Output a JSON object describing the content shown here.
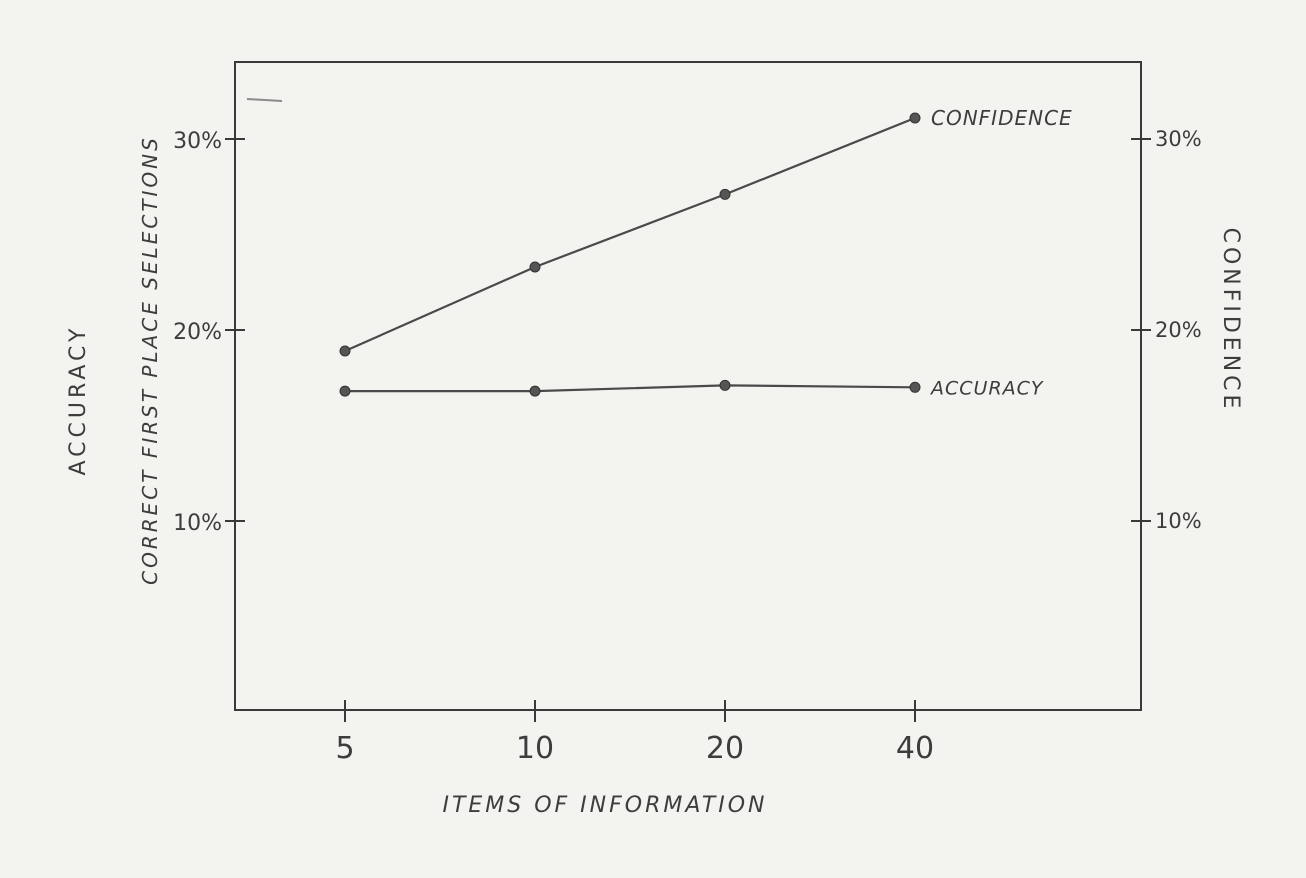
{
  "chart_data": {
    "type": "line",
    "x": [
      "5",
      "10",
      "20",
      "40"
    ],
    "xlabel": "ITEMS OF INFORMATION",
    "ylabel_left_outer": "ACCURACY",
    "ylabel_left_inner": "CORRECT FIRST PLACE SELECTIONS",
    "ylabel_right": "CONFIDENCE",
    "ylim": [
      0,
      34
    ],
    "y_ticks_left": [
      "10%",
      "20%",
      "30%"
    ],
    "y_ticks_right": [
      "10%",
      "20%",
      "30%"
    ],
    "grid": false,
    "series": [
      {
        "name": "CONFIDENCE",
        "values": [
          18.9,
          23.3,
          27.1,
          31.1
        ]
      },
      {
        "name": "ACCURACY",
        "values": [
          16.8,
          16.8,
          17.1,
          17.0
        ]
      }
    ]
  }
}
